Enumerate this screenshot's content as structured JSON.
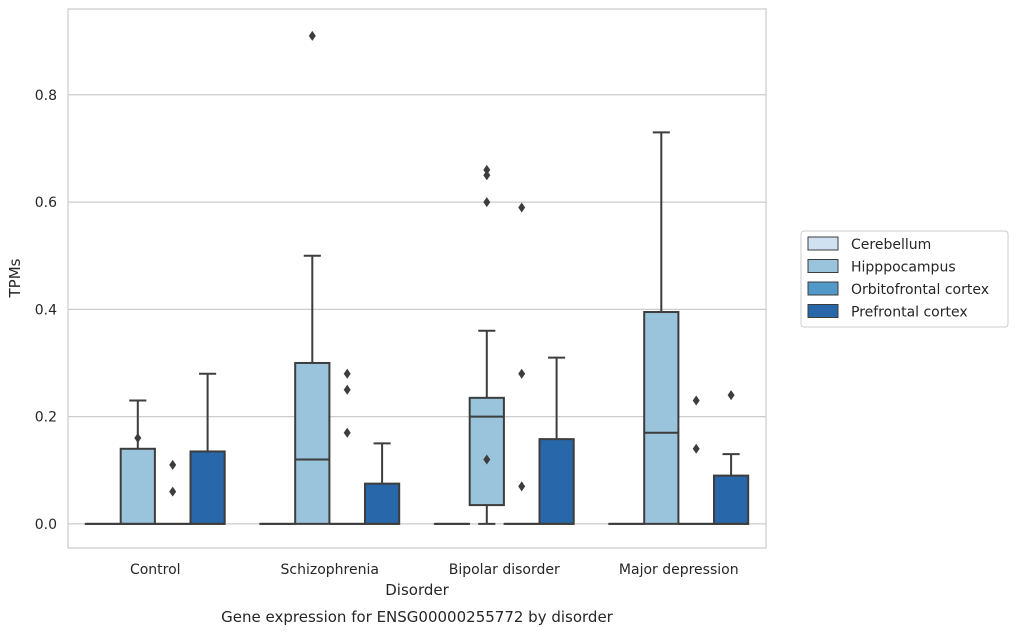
{
  "chart_data": {
    "type": "box",
    "title": "",
    "xlabel": "Disorder",
    "ylabel": "TPMs",
    "caption": "Gene expression for ENSG00000255772 by disorder",
    "ylim": [
      -0.045,
      0.96
    ],
    "yticks": [
      0.0,
      0.2,
      0.4,
      0.6,
      0.8
    ],
    "grid": "horizontal",
    "legend_position": "right",
    "categories": [
      "Control",
      "Schizophrenia",
      "Bipolar disorder",
      "Major depression"
    ],
    "series": [
      {
        "name": "Cerebellum",
        "color": "#d0e1f2",
        "boxes": [
          {
            "q1": 0,
            "median": 0,
            "q3": 0,
            "whislo": 0,
            "whishi": 0,
            "fliers": []
          },
          {
            "q1": 0,
            "median": 0,
            "q3": 0,
            "whislo": 0,
            "whishi": 0,
            "fliers": []
          },
          {
            "q1": 0,
            "median": 0,
            "q3": 0,
            "whislo": 0,
            "whishi": 0,
            "fliers": []
          },
          {
            "q1": 0,
            "median": 0,
            "q3": 0,
            "whislo": 0,
            "whishi": 0,
            "fliers": []
          }
        ]
      },
      {
        "name": "Hipppocampus",
        "color": "#9ac3dc",
        "boxes": [
          {
            "q1": 0,
            "median": 0,
            "q3": 0.14,
            "whislo": 0,
            "whishi": 0.23,
            "fliers": [
              0.16
            ]
          },
          {
            "q1": 0,
            "median": 0.12,
            "q3": 0.3,
            "whislo": 0,
            "whishi": 0.5,
            "fliers": [
              0.91
            ]
          },
          {
            "q1": 0.035,
            "median": 0.2,
            "q3": 0.235,
            "whislo": 0,
            "whishi": 0.36,
            "fliers": [
              0.12,
              0.66,
              0.65,
              0.6
            ]
          },
          {
            "q1": 0,
            "median": 0.17,
            "q3": 0.395,
            "whislo": 0,
            "whishi": 0.73,
            "fliers": []
          }
        ]
      },
      {
        "name": "Orbitofrontal cortex",
        "color": "#5298c8",
        "boxes": [
          {
            "q1": 0,
            "median": 0,
            "q3": 0,
            "whislo": 0,
            "whishi": 0,
            "fliers": [
              0.11,
              0.06
            ]
          },
          {
            "q1": 0,
            "median": 0,
            "q3": 0,
            "whislo": 0,
            "whishi": 0,
            "fliers": [
              0.25,
              0.17,
              0.28
            ]
          },
          {
            "q1": 0,
            "median": 0,
            "q3": 0,
            "whislo": 0,
            "whishi": 0,
            "fliers": [
              0.28,
              0.07,
              0.59
            ]
          },
          {
            "q1": 0,
            "median": 0,
            "q3": 0,
            "whislo": 0,
            "whishi": 0,
            "fliers": [
              0.23,
              0.14
            ]
          }
        ]
      },
      {
        "name": "Prefrontal cortex",
        "color": "#2867a9",
        "boxes": [
          {
            "q1": 0,
            "median": 0,
            "q3": 0.135,
            "whislo": 0,
            "whishi": 0.28,
            "fliers": []
          },
          {
            "q1": 0,
            "median": 0,
            "q3": 0.075,
            "whislo": 0,
            "whishi": 0.15,
            "fliers": []
          },
          {
            "q1": 0,
            "median": 0,
            "q3": 0.158,
            "whislo": 0,
            "whishi": 0.31,
            "fliers": []
          },
          {
            "q1": 0,
            "median": 0,
            "q3": 0.09,
            "whislo": 0,
            "whishi": 0.13,
            "fliers": [
              0.24
            ]
          }
        ]
      }
    ]
  }
}
